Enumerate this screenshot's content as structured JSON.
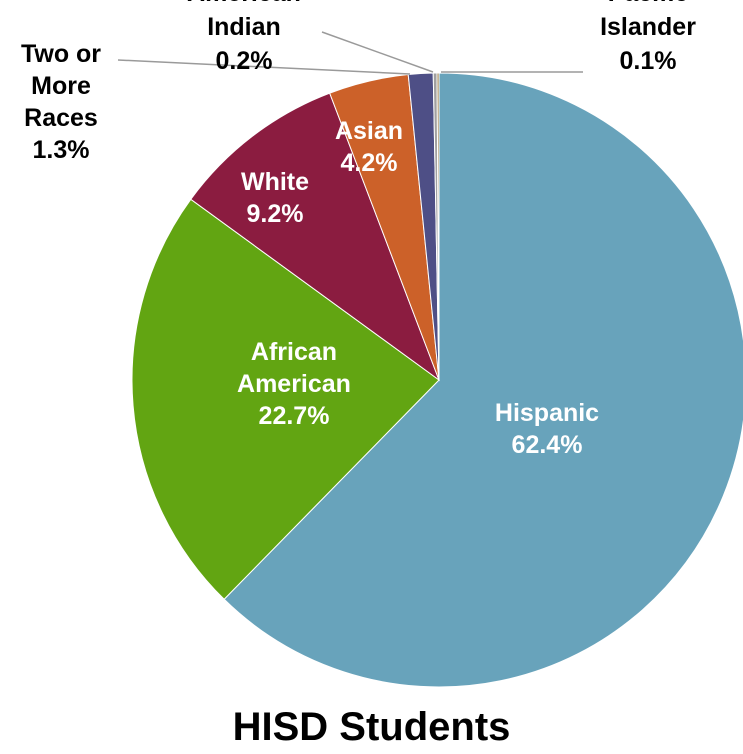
{
  "chart_data": {
    "type": "pie",
    "title": "HISD Students",
    "start_angle_deg": 0,
    "direction": "clockwise",
    "slices": [
      {
        "name": "Hispanic",
        "value": 62.4,
        "label_lines": [
          "Hispanic",
          "62.4%"
        ],
        "color": "#68A3BB",
        "label_color": "#FFFFFF",
        "label_placement": "inside"
      },
      {
        "name": "African American",
        "value": 22.7,
        "label_lines": [
          "African",
          "American",
          "22.7%"
        ],
        "color": "#62A512",
        "label_color": "#FFFFFF",
        "label_placement": "inside"
      },
      {
        "name": "White",
        "value": 9.2,
        "label_lines": [
          "White",
          "9.2%"
        ],
        "color": "#8B1C40",
        "label_color": "#FFFFFF",
        "label_placement": "inside"
      },
      {
        "name": "Asian",
        "value": 4.2,
        "label_lines": [
          "Asian",
          "4.2%"
        ],
        "color": "#CC6129",
        "label_color": "#FFFFFF",
        "label_placement": "inside"
      },
      {
        "name": "Two or More Races",
        "value": 1.3,
        "label_lines": [
          "Two or",
          "More",
          "Races",
          "1.3%"
        ],
        "color": "#4E4F86",
        "label_color": "#000000",
        "label_placement": "outside-leader"
      },
      {
        "name": "American Indian",
        "value": 0.2,
        "label_lines": [
          "American",
          "Indian",
          "0.2%"
        ],
        "color": "#A0A0A0",
        "label_color": "#000000",
        "label_placement": "outside-leader"
      },
      {
        "name": "Pacific Islander",
        "value": 0.1,
        "label_lines": [
          "Pacific",
          "Islander",
          "0.1%"
        ],
        "color": "#8B6A2C",
        "label_color": "#000000",
        "label_placement": "outside-leader"
      }
    ]
  }
}
